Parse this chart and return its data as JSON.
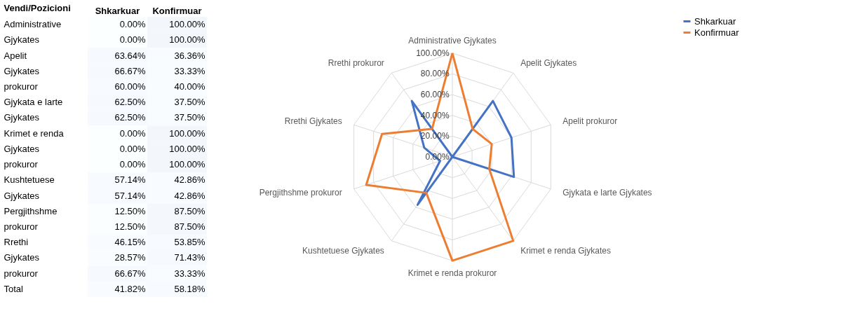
{
  "chart_data": [
    {
      "type": "heatmap",
      "ylabel": "Vendi/Pozicioni",
      "categories": [
        "Shkarkuar",
        "Konfirmuar"
      ],
      "y_categories": [
        "Administrative",
        "Gjykates",
        "Apelit",
        "Gjykates",
        "prokuror",
        "Gjykata e larte",
        "Gjykates",
        "Krimet e renda",
        "Gjykates",
        "prokuror",
        "Kushtetuese",
        "Gjykates",
        "Pergjithshme",
        "prokuror",
        "Rrethi",
        "Gjykates",
        "prokuror",
        "Total"
      ],
      "cells": [
        [
          0,
          100
        ],
        [
          0,
          100
        ],
        [
          63.64,
          36.36
        ],
        [
          66.67,
          33.33
        ],
        [
          60,
          40
        ],
        [
          62.5,
          37.5
        ],
        [
          62.5,
          37.5
        ],
        [
          0,
          100
        ],
        [
          0,
          100
        ],
        [
          0,
          100
        ],
        [
          57.14,
          42.86
        ],
        [
          57.14,
          42.86
        ],
        [
          12.5,
          87.5
        ],
        [
          12.5,
          87.5
        ],
        [
          46.15,
          53.85
        ],
        [
          28.57,
          71.43
        ],
        [
          66.67,
          33.33
        ],
        [
          41.82,
          58.18
        ]
      ],
      "cell_labels": [
        [
          "0.00%",
          "100.00%"
        ],
        [
          "0.00%",
          "100.00%"
        ],
        [
          "63.64%",
          "36.36%"
        ],
        [
          "66.67%",
          "33.33%"
        ],
        [
          "60.00%",
          "40.00%"
        ],
        [
          "62.50%",
          "37.50%"
        ],
        [
          "62.50%",
          "37.50%"
        ],
        [
          "0.00%",
          "100.00%"
        ],
        [
          "0.00%",
          "100.00%"
        ],
        [
          "0.00%",
          "100.00%"
        ],
        [
          "57.14%",
          "42.86%"
        ],
        [
          "57.14%",
          "42.86%"
        ],
        [
          "12.50%",
          "87.50%"
        ],
        [
          "12.50%",
          "87.50%"
        ],
        [
          "46.15%",
          "53.85%"
        ],
        [
          "28.57%",
          "71.43%"
        ],
        [
          "66.67%",
          "33.33%"
        ],
        [
          "41.82%",
          "58.18%"
        ]
      ]
    },
    {
      "type": "radar",
      "categories": [
        "Administrative Gjykates",
        "Apelit Gjykates",
        "Apelit prokuror",
        "Gjykata e larte Gjykates",
        "Krimet e renda Gjykates",
        "Krimet e renda prokuror",
        "Kushtetuese Gjykates",
        "Pergjithshme prokuror",
        "Rrethi Gjykates",
        "Rrethi prokuror"
      ],
      "ylim": [
        0,
        100
      ],
      "yticks": [
        {
          "value": 0,
          "label": "0.00%"
        },
        {
          "value": 20,
          "label": "20.00%"
        },
        {
          "value": 40,
          "label": "40.00%"
        },
        {
          "value": 60,
          "label": "60.00%"
        },
        {
          "value": 80,
          "label": "80.00%"
        },
        {
          "value": 100,
          "label": "100.00%"
        }
      ],
      "grid": true,
      "legend": "right",
      "series": [
        {
          "name": "Shkarkuar",
          "color": "#4472c4",
          "values": [
            0,
            66.67,
            60,
            62.5,
            0,
            0,
            57.14,
            12.5,
            28.57,
            66.67
          ]
        },
        {
          "name": "Konfirmuar",
          "color": "#ed7d31",
          "values": [
            100,
            33.33,
            40,
            37.5,
            100,
            100,
            42.86,
            87.5,
            71.43,
            33.33
          ]
        }
      ]
    }
  ]
}
